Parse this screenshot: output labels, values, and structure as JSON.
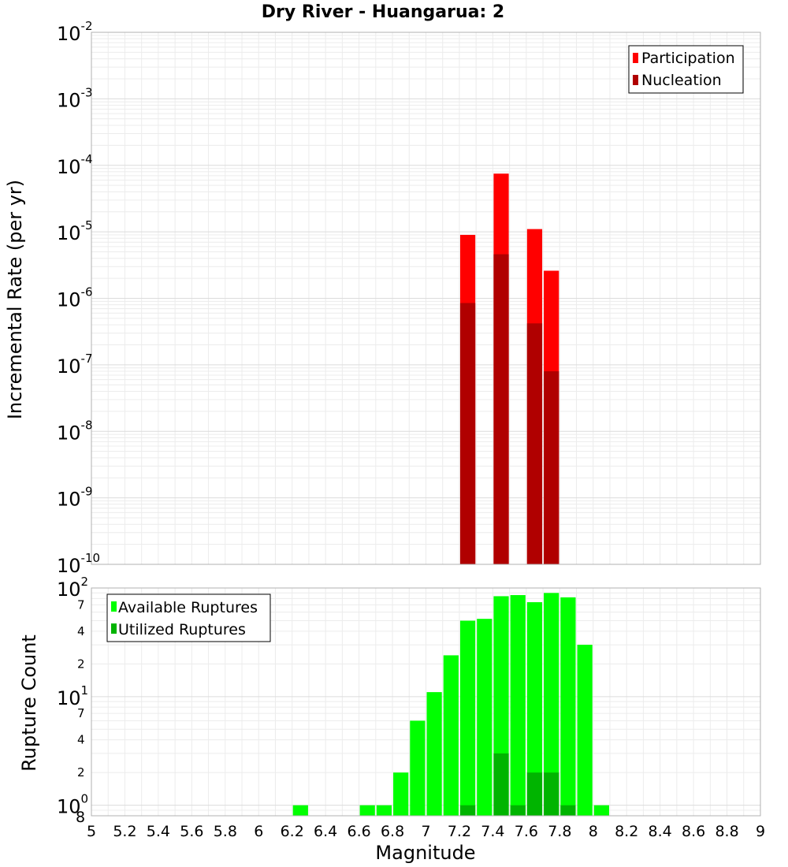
{
  "chart_data": [
    {
      "type": "bar",
      "title": "Dry River - Huangarua: 2",
      "ylabel": "Incremental Rate (per yr)",
      "yscale": "log",
      "ylim": [
        1e-10,
        0.01
      ],
      "xlim": [
        5,
        9
      ],
      "grid": true,
      "legend_position": "top-right",
      "y_ticks": [
        {
          "base": "10",
          "exp": "-10"
        },
        {
          "base": "10",
          "exp": "-9"
        },
        {
          "base": "10",
          "exp": "-8"
        },
        {
          "base": "10",
          "exp": "-7"
        },
        {
          "base": "10",
          "exp": "-6"
        },
        {
          "base": "10",
          "exp": "-5"
        },
        {
          "base": "10",
          "exp": "-4"
        },
        {
          "base": "10",
          "exp": "-3"
        },
        {
          "base": "10",
          "exp": "-2"
        }
      ],
      "x": [
        7.25,
        7.45,
        7.65,
        7.75
      ],
      "series": [
        {
          "name": "Participation",
          "color": "#ff0000",
          "values": [
            9e-06,
            7.5e-05,
            1.1e-05,
            2.6e-06
          ]
        },
        {
          "name": "Nucleation",
          "color": "#b00000",
          "values": [
            8.5e-07,
            4.6e-06,
            4.2e-07,
            8e-08
          ]
        }
      ]
    },
    {
      "type": "bar",
      "ylabel": "Rupture Count",
      "xlabel": "Magnitude",
      "yscale": "log",
      "ylim": [
        0.8,
        100
      ],
      "xlim": [
        5,
        9
      ],
      "grid": true,
      "legend_position": "top-left",
      "y_major_ticks": [
        {
          "base": "10",
          "exp": "0",
          "value": 1
        },
        {
          "base": "10",
          "exp": "1",
          "value": 10
        },
        {
          "base": "10",
          "exp": "2",
          "value": 100
        }
      ],
      "y_minor_ticks": [
        {
          "label": "8",
          "value": 0.8
        },
        {
          "label": "2",
          "value": 2
        },
        {
          "label": "4",
          "value": 4
        },
        {
          "label": "7",
          "value": 7
        },
        {
          "label": "2",
          "value": 20
        },
        {
          "label": "4",
          "value": 40
        },
        {
          "label": "7",
          "value": 70
        }
      ],
      "x_tick_labels": [
        "5",
        "5.2",
        "5.4",
        "5.6",
        "5.8",
        "6",
        "6.2",
        "6.4",
        "6.6",
        "6.8",
        "7",
        "7.2",
        "7.4",
        "7.6",
        "7.8",
        "8",
        "8.2",
        "8.4",
        "8.6",
        "8.8",
        "9"
      ],
      "x": [
        6.25,
        6.65,
        6.75,
        6.85,
        6.95,
        7.05,
        7.15,
        7.25,
        7.35,
        7.45,
        7.55,
        7.65,
        7.75,
        7.85,
        7.95,
        8.05
      ],
      "series": [
        {
          "name": "Available Ruptures",
          "color": "#00ff00",
          "values": [
            1,
            1,
            1,
            2,
            6,
            11,
            24,
            50,
            52,
            84,
            86,
            74,
            90,
            82,
            30,
            1
          ]
        },
        {
          "name": "Utilized Ruptures",
          "color": "#00b400",
          "values": [
            0,
            0,
            0,
            0,
            0,
            0,
            0,
            1,
            0,
            3,
            1,
            2,
            2,
            1,
            0,
            0
          ]
        }
      ]
    }
  ]
}
